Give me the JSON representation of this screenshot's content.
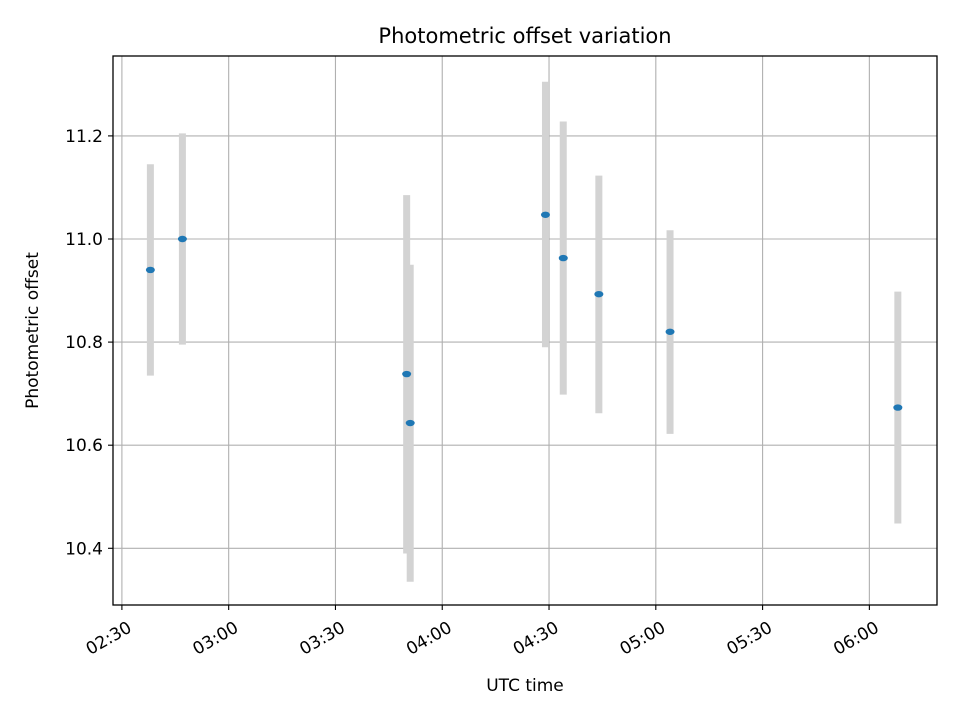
{
  "chart_data": {
    "type": "scatter",
    "title": "Photometric offset variation",
    "xlabel": "UTC time",
    "ylabel": "Photometric offset",
    "x_is_time": true,
    "x_tick_labels": [
      "02:30",
      "03:00",
      "03:30",
      "04:00",
      "04:30",
      "05:00",
      "05:30",
      "06:00"
    ],
    "x_ticks": [
      "02:30",
      "03:00",
      "03:30",
      "04:00",
      "04:30",
      "05:00",
      "05:30",
      "06:00"
    ],
    "xlim": [
      "02:27.5",
      "06:19"
    ],
    "y_ticks": [
      10.4,
      10.6,
      10.8,
      11.0,
      11.2
    ],
    "y_tick_labels": [
      "10.4",
      "10.6",
      "10.8",
      "11.0",
      "11.2"
    ],
    "ylim": [
      10.29,
      11.355
    ],
    "grid": true,
    "marker_color": "#1f77b4",
    "errorbar_color": "#d3d3d3",
    "series": [
      {
        "points": [
          {
            "x": "02:38",
            "y": 10.94,
            "err_low": 10.735,
            "err_high": 11.145
          },
          {
            "x": "02:47",
            "y": 11.0,
            "err_low": 10.795,
            "err_high": 11.205
          },
          {
            "x": "03:50",
            "y": 10.738,
            "err_low": 10.39,
            "err_high": 11.085
          },
          {
            "x": "03:51",
            "y": 10.643,
            "err_low": 10.335,
            "err_high": 10.95
          },
          {
            "x": "04:29",
            "y": 11.047,
            "err_low": 10.79,
            "err_high": 11.305
          },
          {
            "x": "04:34",
            "y": 10.963,
            "err_low": 10.698,
            "err_high": 11.228
          },
          {
            "x": "04:44",
            "y": 10.893,
            "err_low": 10.662,
            "err_high": 11.123
          },
          {
            "x": "05:04",
            "y": 10.82,
            "err_low": 10.622,
            "err_high": 11.017
          },
          {
            "x": "06:08",
            "y": 10.673,
            "err_low": 10.448,
            "err_high": 10.898
          }
        ]
      }
    ]
  }
}
